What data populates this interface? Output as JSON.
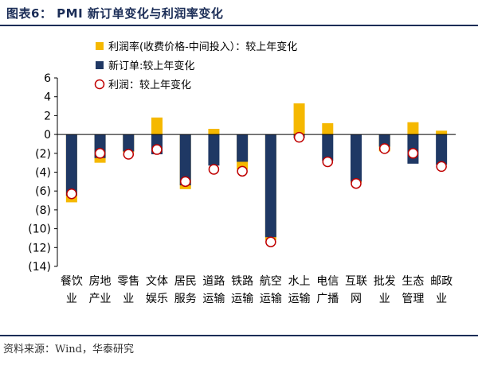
{
  "header": {
    "title": "图表6： PMI 新订单变化与利润率变化"
  },
  "footer": {
    "source": "资料来源：Wind，华泰研究"
  },
  "colors": {
    "profit_margin": "#f5b800",
    "new_orders": "#1f3864",
    "profit_marker": "#c00000",
    "rule": "#1b2d57"
  },
  "chart_data": {
    "type": "bar",
    "categories": [
      [
        "餐饮",
        "业"
      ],
      [
        "房地",
        "产业"
      ],
      [
        "零售",
        "业"
      ],
      [
        "文体",
        "娱乐"
      ],
      [
        "居民",
        "服务"
      ],
      [
        "道路",
        "运输"
      ],
      [
        "铁路",
        "运输"
      ],
      [
        "航空",
        "运输"
      ],
      [
        "水上",
        "运输"
      ],
      [
        "电信",
        "广播"
      ],
      [
        "互联",
        "网"
      ],
      [
        "批发",
        "业"
      ],
      [
        "生态",
        "管理"
      ],
      [
        "邮政",
        "业"
      ]
    ],
    "series": [
      {
        "name": "利润率(收费价格-中间投入）：较上年变化",
        "kind": "bar",
        "values": [
          -7.2,
          -3.0,
          -1.9,
          1.8,
          -5.8,
          0.6,
          -3.7,
          -11.2,
          3.3,
          1.2,
          -5.1,
          -1.8,
          1.3,
          0.4
        ]
      },
      {
        "name": "新订单:较上年变化",
        "kind": "bar",
        "values": [
          -6.5,
          -2.5,
          -1.8,
          -2.1,
          -5.4,
          -3.3,
          -2.9,
          -10.9,
          -0.4,
          -2.8,
          -5.0,
          -1.3,
          -3.1,
          -3.2
        ]
      },
      {
        "name": "利润：较上年变化",
        "kind": "marker",
        "values": [
          -6.3,
          -2.0,
          -2.1,
          -1.6,
          -5.0,
          -3.7,
          -3.9,
          -11.4,
          -0.3,
          -2.9,
          -5.2,
          -1.5,
          -2.0,
          -3.4
        ]
      }
    ],
    "yticks": [
      "6",
      "4",
      "2",
      "0",
      "(2)",
      "(4)",
      "(6)",
      "(8)",
      "(10)",
      "(12)",
      "(14)"
    ],
    "ylim": [
      -14,
      6
    ],
    "legend_position": "top-left",
    "grid": false
  }
}
